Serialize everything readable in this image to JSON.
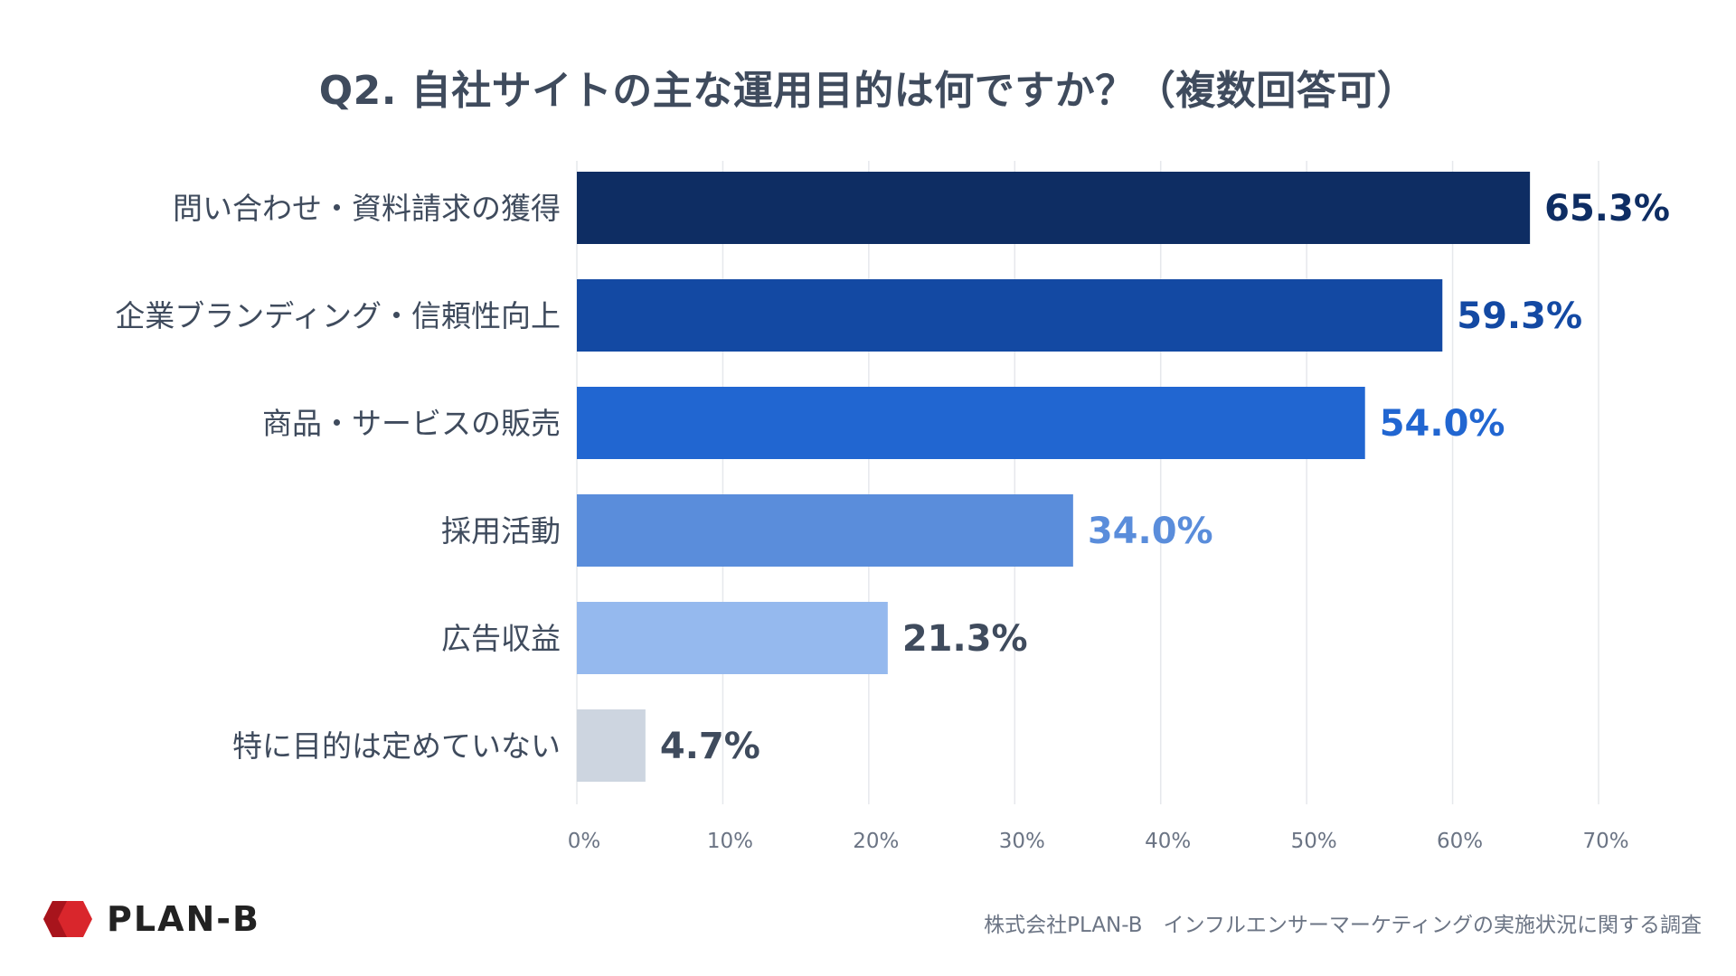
{
  "chart_data": {
    "type": "bar",
    "orientation": "horizontal",
    "title": "Q2. 自社サイトの主な運用目的は何ですか？（複数回答可）",
    "categories": [
      "問い合わせ・資料請求の獲得",
      "企業ブランディング・信頼性向上",
      "商品・サービスの販売",
      "採用活動",
      "広告収益",
      "特に目的は定めていない"
    ],
    "values": [
      65.3,
      59.3,
      54.0,
      34.0,
      21.3,
      4.7
    ],
    "value_labels": [
      "65.3%",
      "59.3%",
      "54.0%",
      "34.0%",
      "21.3%",
      "4.7%"
    ],
    "bar_colors": [
      "#0e2d63",
      "#1349a3",
      "#2166d1",
      "#5a8ddb",
      "#95b9ee",
      "#cdd5e0"
    ],
    "label_colors": [
      "#0e2d63",
      "#1349a3",
      "#2166d1",
      "#5a8ddb",
      "#3f4b5d",
      "#3f4b5d"
    ],
    "xlim": [
      0,
      70
    ],
    "xticks": [
      0,
      10,
      20,
      30,
      40,
      50,
      60,
      70
    ],
    "xtick_labels": [
      "0%",
      "10%",
      "20%",
      "30%",
      "40%",
      "50%",
      "60%",
      "70%"
    ],
    "grid": true,
    "legend": "none"
  },
  "footer": {
    "logo_text": "PLAN-B",
    "logo_color": "#d9262c",
    "source": "株式会社PLAN-B　インフルエンサーマーケティングの実施状況に関する調査"
  }
}
